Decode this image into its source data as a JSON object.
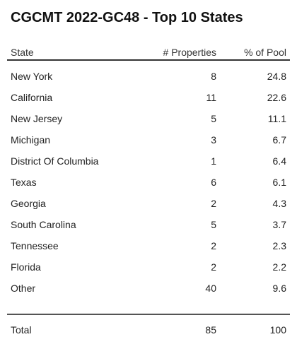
{
  "title": "CGCMT 2022-GC48 - Top 10 States",
  "table": {
    "headers": {
      "state": "State",
      "properties": "# Properties",
      "pool": "% of Pool"
    },
    "rows": [
      {
        "state": "New York",
        "properties": "8",
        "pool": "24.8"
      },
      {
        "state": "California",
        "properties": "11",
        "pool": "22.6"
      },
      {
        "state": "New Jersey",
        "properties": "5",
        "pool": "11.1"
      },
      {
        "state": "Michigan",
        "properties": "3",
        "pool": "6.7"
      },
      {
        "state": "District Of Columbia",
        "properties": "1",
        "pool": "6.4"
      },
      {
        "state": "Texas",
        "properties": "6",
        "pool": "6.1"
      },
      {
        "state": "Georgia",
        "properties": "2",
        "pool": "4.3"
      },
      {
        "state": "South Carolina",
        "properties": "5",
        "pool": "3.7"
      },
      {
        "state": "Tennessee",
        "properties": "2",
        "pool": "2.3"
      },
      {
        "state": "Florida",
        "properties": "2",
        "pool": "2.2"
      },
      {
        "state": "Other",
        "properties": "40",
        "pool": "9.6"
      }
    ],
    "total": {
      "label": "Total",
      "properties": "85",
      "pool": "100"
    }
  }
}
